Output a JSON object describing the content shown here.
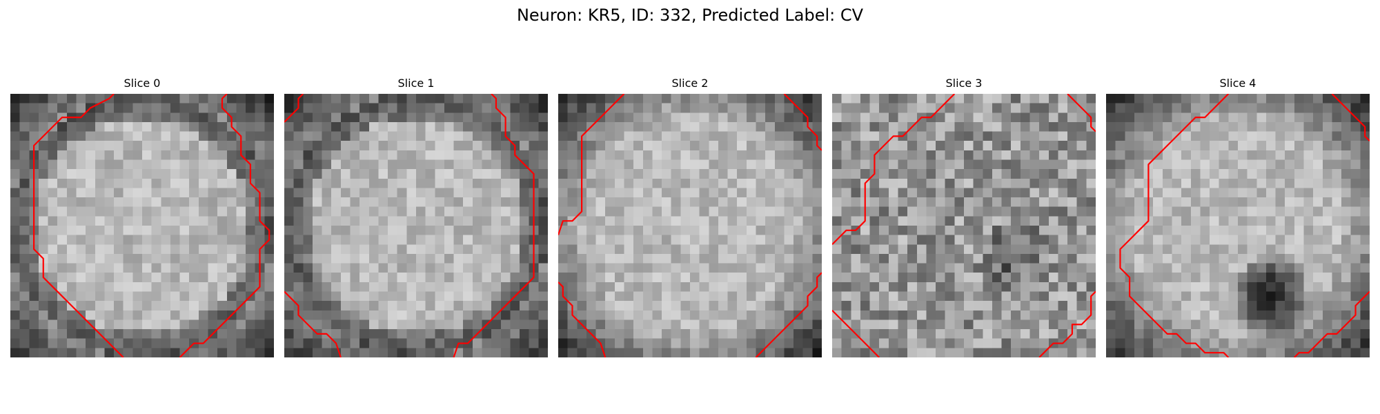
{
  "figure": {
    "title": "Neuron: KR5, ID: 332, Predicted Label: CV"
  },
  "panels": [
    {
      "title": "Slice 0",
      "contours": [
        [
          [
            10.5,
            -0.5
          ],
          [
            10,
            0
          ],
          [
            8,
            1
          ],
          [
            7,
            2
          ],
          [
            5,
            2
          ],
          [
            4,
            3
          ],
          [
            3,
            4
          ],
          [
            2,
            5
          ],
          [
            2,
            6
          ],
          [
            2,
            7
          ],
          [
            2,
            8
          ],
          [
            2,
            9
          ],
          [
            2,
            10
          ],
          [
            2,
            11
          ],
          [
            2,
            12
          ],
          [
            2,
            13
          ],
          [
            2,
            14
          ],
          [
            2,
            15
          ],
          [
            2,
            16
          ],
          [
            3,
            17
          ],
          [
            3,
            18
          ],
          [
            3,
            19
          ],
          [
            4,
            20
          ],
          [
            5,
            21
          ],
          [
            6,
            22
          ],
          [
            7,
            23
          ],
          [
            8,
            24
          ],
          [
            9,
            25
          ],
          [
            10,
            26
          ],
          [
            11,
            27
          ],
          [
            11.5,
            27.5
          ]
        ],
        [
          [
            22.5,
            -0.5
          ],
          [
            22,
            0
          ],
          [
            22,
            1
          ],
          [
            23,
            2
          ],
          [
            23,
            3
          ],
          [
            24,
            4
          ],
          [
            24,
            5
          ],
          [
            24,
            6
          ],
          [
            25,
            7
          ],
          [
            25,
            8
          ],
          [
            25,
            9
          ],
          [
            26,
            10
          ],
          [
            26,
            11
          ],
          [
            26,
            12
          ],
          [
            26,
            13
          ],
          [
            27,
            14
          ],
          [
            27,
            15
          ],
          [
            26,
            16
          ],
          [
            26,
            17
          ],
          [
            26,
            18
          ],
          [
            26,
            19
          ],
          [
            26,
            20
          ],
          [
            25,
            21
          ],
          [
            24,
            22
          ],
          [
            23,
            23
          ],
          [
            22,
            24
          ],
          [
            21,
            25
          ],
          [
            20,
            26
          ],
          [
            19,
            26
          ],
          [
            18,
            27
          ],
          [
            17.5,
            27.5
          ]
        ]
      ]
    },
    {
      "title": "Slice 1",
      "contours": [
        [
          [
            1.5,
            -0.5
          ],
          [
            1,
            0
          ],
          [
            1,
            1
          ],
          [
            0,
            2
          ],
          [
            -0.5,
            2.5
          ]
        ],
        [
          [
            21.5,
            -0.5
          ],
          [
            22,
            0
          ],
          [
            22,
            1
          ],
          [
            23,
            2
          ],
          [
            23,
            3
          ],
          [
            23,
            4
          ],
          [
            24,
            5
          ],
          [
            24,
            6
          ],
          [
            25,
            7
          ],
          [
            26,
            8
          ],
          [
            26,
            9
          ],
          [
            26,
            10
          ],
          [
            26,
            11
          ],
          [
            26,
            12
          ],
          [
            26,
            13
          ],
          [
            26,
            14
          ],
          [
            26,
            15
          ],
          [
            26,
            16
          ],
          [
            26,
            17
          ],
          [
            26,
            18
          ],
          [
            26,
            19
          ],
          [
            25,
            20
          ],
          [
            24,
            21
          ],
          [
            23,
            22
          ],
          [
            22,
            23
          ],
          [
            21,
            24
          ],
          [
            20,
            25
          ],
          [
            19,
            26
          ],
          [
            18,
            26
          ],
          [
            17.5,
            27.5
          ]
        ],
        [
          [
            -0.5,
            20.5
          ],
          [
            0,
            21
          ],
          [
            1,
            22
          ],
          [
            1,
            23
          ],
          [
            2,
            24
          ],
          [
            3,
            25
          ],
          [
            4,
            25
          ],
          [
            5,
            26
          ],
          [
            5.5,
            27.5
          ]
        ]
      ]
    },
    {
      "title": "Slice 2",
      "contours": [
        [
          [
            6.5,
            -0.5
          ],
          [
            6,
            0
          ],
          [
            5,
            1
          ],
          [
            4,
            2
          ],
          [
            3,
            3
          ],
          [
            2,
            4
          ],
          [
            2,
            5
          ],
          [
            2,
            6
          ],
          [
            2,
            7
          ],
          [
            2,
            8
          ],
          [
            2,
            9
          ],
          [
            2,
            10
          ],
          [
            2,
            11
          ],
          [
            2,
            12
          ],
          [
            1,
            13
          ],
          [
            0,
            13
          ],
          [
            -0.5,
            14.5
          ]
        ],
        [
          [
            23.5,
            -0.5
          ],
          [
            24,
            0
          ],
          [
            25,
            1
          ],
          [
            26,
            2
          ],
          [
            26,
            3
          ],
          [
            27,
            4
          ],
          [
            27,
            5
          ],
          [
            27.5,
            5.5
          ]
        ],
        [
          [
            -0.5,
            19.5
          ],
          [
            0,
            20
          ],
          [
            0,
            21
          ],
          [
            1,
            22
          ],
          [
            1,
            23
          ],
          [
            2,
            24
          ],
          [
            3,
            25
          ],
          [
            4,
            26
          ],
          [
            4.5,
            27.5
          ]
        ],
        [
          [
            27.5,
            18.5
          ],
          [
            27,
            19
          ],
          [
            27,
            20
          ],
          [
            26,
            21
          ],
          [
            26,
            22
          ],
          [
            25,
            23
          ],
          [
            24,
            24
          ],
          [
            23,
            25
          ],
          [
            22,
            26
          ],
          [
            21,
            27
          ],
          [
            20.5,
            27.5
          ]
        ]
      ]
    },
    {
      "title": "Slice 3",
      "contours": [
        [
          [
            12.5,
            -0.5
          ],
          [
            12,
            0
          ],
          [
            11,
            1
          ],
          [
            10,
            2
          ],
          [
            9,
            2
          ],
          [
            8,
            3
          ],
          [
            7,
            4
          ],
          [
            6,
            4
          ],
          [
            5,
            5
          ],
          [
            4,
            6
          ],
          [
            4,
            7
          ],
          [
            4,
            8
          ],
          [
            3,
            9
          ],
          [
            3,
            10
          ],
          [
            3,
            11
          ],
          [
            3,
            12
          ],
          [
            3,
            13
          ],
          [
            2,
            14
          ],
          [
            1,
            14
          ],
          [
            0,
            15
          ],
          [
            -0.5,
            15.5
          ]
        ],
        [
          [
            24.5,
            -0.5
          ],
          [
            25,
            0
          ],
          [
            26,
            1
          ],
          [
            27,
            2
          ],
          [
            27,
            3
          ],
          [
            27.5,
            3.5
          ]
        ],
        [
          [
            -0.5,
            22.5
          ],
          [
            0,
            23
          ],
          [
            1,
            24
          ],
          [
            2,
            25
          ],
          [
            3,
            26
          ],
          [
            4,
            27
          ],
          [
            4.5,
            27.5
          ]
        ],
        [
          [
            27.5,
            20.5
          ],
          [
            27,
            21
          ],
          [
            27,
            22
          ],
          [
            27,
            23
          ],
          [
            26,
            24
          ],
          [
            25,
            24
          ],
          [
            25,
            25
          ],
          [
            24,
            26
          ],
          [
            23,
            26
          ],
          [
            22,
            27
          ],
          [
            21.5,
            27.5
          ]
        ]
      ]
    },
    {
      "title": "Slice 4",
      "contours": [
        [
          [
            12.5,
            -0.5
          ],
          [
            12,
            0
          ],
          [
            11,
            1
          ],
          [
            10,
            2
          ],
          [
            9,
            2
          ],
          [
            8,
            3
          ],
          [
            7,
            4
          ],
          [
            6,
            5
          ],
          [
            5,
            6
          ],
          [
            4,
            7
          ],
          [
            4,
            8
          ],
          [
            4,
            9
          ],
          [
            4,
            10
          ],
          [
            4,
            11
          ],
          [
            4,
            12
          ],
          [
            4,
            13
          ],
          [
            3,
            14
          ],
          [
            2,
            15
          ],
          [
            1,
            16
          ],
          [
            1,
            17
          ],
          [
            1,
            18
          ],
          [
            2,
            19
          ],
          [
            2,
            20
          ],
          [
            2,
            21
          ],
          [
            3,
            22
          ],
          [
            4,
            23
          ],
          [
            5,
            24
          ],
          [
            6,
            25
          ],
          [
            7,
            25
          ],
          [
            8,
            26
          ],
          [
            9,
            26
          ],
          [
            10,
            27
          ],
          [
            11,
            27
          ],
          [
            12,
            27
          ],
          [
            12.5,
            27.5
          ]
        ],
        [
          [
            23.5,
            -0.5
          ],
          [
            24,
            0
          ],
          [
            25,
            1
          ],
          [
            26,
            2
          ],
          [
            27,
            3
          ],
          [
            27,
            4
          ],
          [
            27.5,
            4.5
          ]
        ],
        [
          [
            27.5,
            20.5
          ],
          [
            27,
            21
          ],
          [
            26,
            22
          ],
          [
            26,
            23
          ],
          [
            25,
            24
          ],
          [
            24,
            25
          ],
          [
            23,
            25
          ],
          [
            22,
            26
          ],
          [
            21,
            27
          ],
          [
            20,
            27
          ],
          [
            19.5,
            27.5
          ]
        ]
      ]
    }
  ]
}
